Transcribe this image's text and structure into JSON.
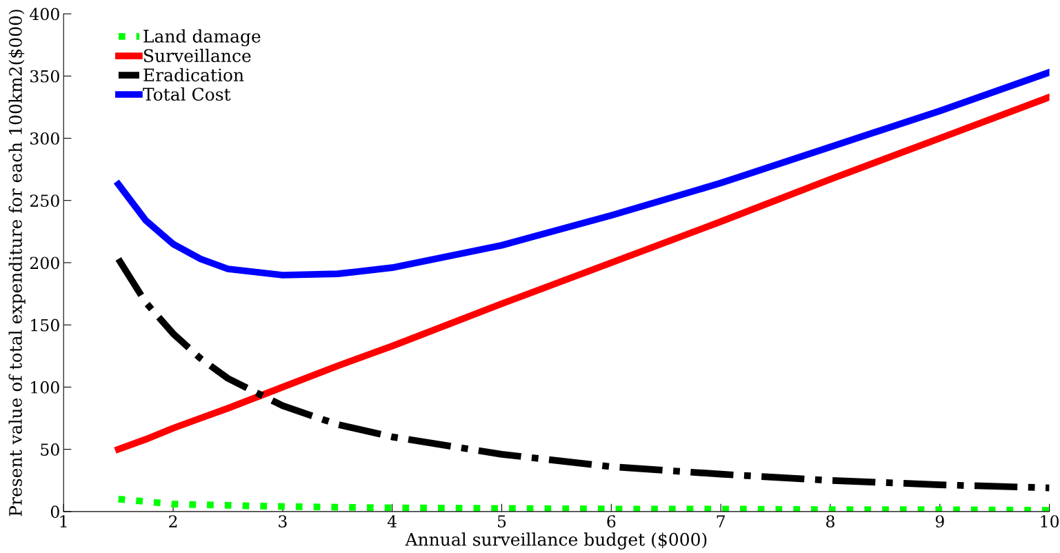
{
  "chart_data": {
    "type": "line",
    "xlabel": "Annual surveillance budget ($000)",
    "ylabel": "Present value of total expenditure for each 100km2($000)",
    "xlim": [
      1,
      10
    ],
    "ylim": [
      0,
      400
    ],
    "xticks": [
      1,
      2,
      3,
      4,
      5,
      6,
      7,
      8,
      9,
      10
    ],
    "yticks": [
      0,
      50,
      100,
      150,
      200,
      250,
      300,
      350,
      400
    ],
    "x": [
      1.5,
      1.75,
      2,
      2.25,
      2.5,
      3,
      3.5,
      4,
      5,
      6,
      7,
      8,
      9,
      10
    ],
    "grid": false,
    "legend": "top left",
    "marker": "none",
    "series": [
      {
        "name": "Land damage",
        "color": "#00ff00",
        "line_style": "dotted",
        "values": [
          10,
          8,
          6,
          5.5,
          5,
          4,
          3.5,
          3,
          2.5,
          2,
          2,
          1.5,
          1.5,
          1
        ]
      },
      {
        "name": "Surveillance",
        "color": "#ff0000",
        "line_style": "solid",
        "values": [
          50,
          58,
          67,
          75,
          83,
          100,
          117,
          133,
          167,
          200,
          233,
          267,
          300,
          333
        ]
      },
      {
        "name": "Eradication",
        "color": "#000000",
        "line_style": "dashdot",
        "values": [
          203,
          168,
          143,
          123,
          107,
          85,
          70,
          60,
          46,
          36,
          30,
          25,
          21.5,
          19
        ]
      },
      {
        "name": "Total Cost",
        "color": "#0000ff",
        "line_style": "solid",
        "values": [
          263,
          234,
          215,
          203,
          195,
          190,
          191,
          196,
          214,
          238,
          264,
          293,
          322,
          353
        ]
      }
    ]
  }
}
